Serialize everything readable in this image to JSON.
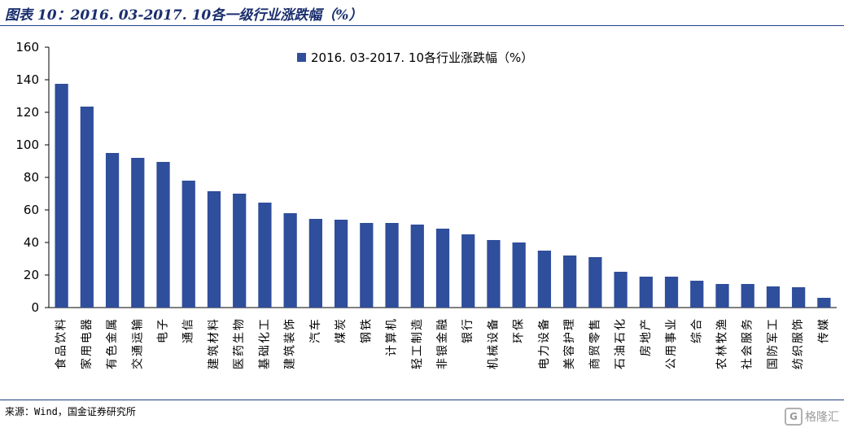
{
  "figure": {
    "title": "图表 10：2016. 03-2017. 10各一级行业涨跌幅（%）",
    "source": "来源：Wind，国金证券研究所",
    "watermark": "格隆汇",
    "watermark_logo": "G"
  },
  "colors": {
    "bar": "#2f4e9b",
    "axis": "#000000",
    "rule": "#1f3f82"
  },
  "chart_data": {
    "type": "bar",
    "title": "",
    "xlabel": "",
    "ylabel": "",
    "ylim": [
      0,
      160
    ],
    "yticks": [
      0,
      20,
      40,
      60,
      80,
      100,
      120,
      140,
      160
    ],
    "grid": false,
    "legend_position": "top-center",
    "categories": [
      "食品饮料",
      "家用电器",
      "有色金属",
      "交通运输",
      "电子",
      "通信",
      "建筑材料",
      "医药生物",
      "基础化工",
      "建筑装饰",
      "汽车",
      "煤炭",
      "钢铁",
      "计算机",
      "轻工制造",
      "非银金融",
      "银行",
      "机械设备",
      "环保",
      "电力设备",
      "美容护理",
      "商贸零售",
      "石油石化",
      "房地产",
      "公用事业",
      "综合",
      "农林牧渔",
      "社会服务",
      "国防军工",
      "纺织服饰",
      "传媒"
    ],
    "series": [
      {
        "name": "2016. 03-2017. 10各行业涨跌幅（%）",
        "values": [
          137.5,
          123.5,
          95,
          92,
          89.5,
          78,
          71.5,
          70,
          64.5,
          58,
          54.5,
          54,
          52,
          52,
          51,
          48.5,
          45,
          41.5,
          40,
          35,
          32,
          31,
          22,
          19,
          19,
          16.5,
          14.5,
          14.5,
          13,
          12.5,
          6
        ]
      }
    ]
  }
}
